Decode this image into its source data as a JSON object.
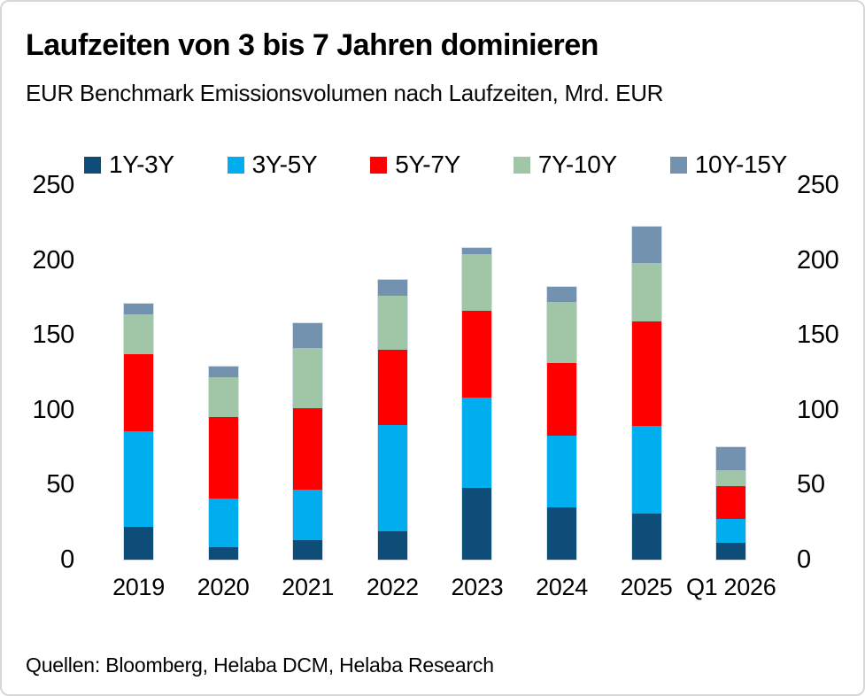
{
  "card": {
    "title": "Laufzeiten von 3 bis 7 Jahren dominieren",
    "subtitle": "EUR Benchmark Emissionsvolumen nach Laufzeiten, Mrd. EUR",
    "source": "Quellen: Bloomberg, Helaba DCM, Helaba Research"
  },
  "chart_data": {
    "type": "bar",
    "stacked": true,
    "title": "Laufzeiten von 3 bis 7 Jahren dominieren",
    "subtitle": "EUR Benchmark Emissionsvolumen nach Laufzeiten, Mrd. EUR",
    "unit": "Mrd. EUR",
    "categories": [
      "2019",
      "2020",
      "2021",
      "2022",
      "2023",
      "2024",
      "2025",
      "Q1 2026"
    ],
    "series": [
      {
        "name": "1Y-3Y",
        "color": "#0E4D78",
        "values": [
          22,
          8,
          13,
          19,
          48,
          35,
          31,
          11
        ]
      },
      {
        "name": "3Y-5Y",
        "color": "#00AEEF",
        "values": [
          64,
          33,
          34,
          71,
          60,
          48,
          58,
          16
        ]
      },
      {
        "name": "5Y-7Y",
        "color": "#FF0000",
        "values": [
          51,
          54,
          54,
          50,
          58,
          48,
          70,
          22
        ]
      },
      {
        "name": "7Y-10Y",
        "color": "#A1C5A7",
        "values": [
          27,
          27,
          40,
          36,
          38,
          41,
          39,
          11
        ]
      },
      {
        "name": "10Y-15Y",
        "color": "#7292B0",
        "values": [
          7,
          7,
          17,
          11,
          4,
          10,
          24,
          15
        ]
      }
    ],
    "totals": [
      171,
      129,
      158,
      187,
      208,
      182,
      222,
      75
    ],
    "ylim": [
      0,
      250
    ],
    "y_ticks": [
      0,
      50,
      100,
      150,
      200,
      250
    ],
    "y_axis_sides": [
      "left",
      "right"
    ],
    "grid": false,
    "legend_position": "top"
  }
}
